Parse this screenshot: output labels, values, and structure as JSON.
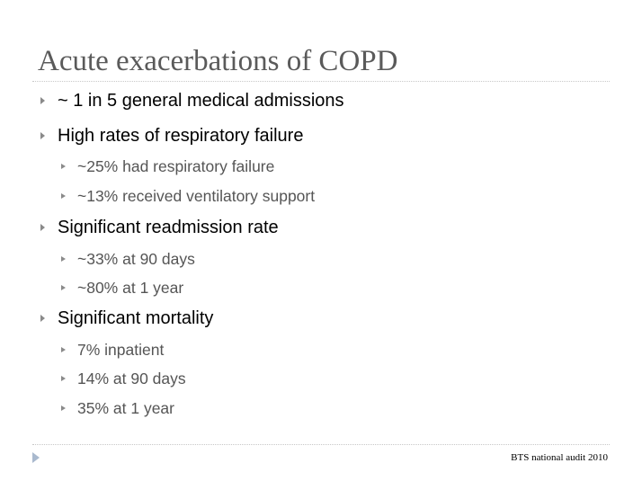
{
  "slide": {
    "title": "Acute exacerbations of COPD",
    "bullets": [
      {
        "text": "~ 1 in 5 general medical admissions",
        "level": 1
      },
      {
        "text": "High rates of respiratory failure",
        "level": 1
      },
      {
        "text": "~25% had respiratory failure",
        "level": 2
      },
      {
        "text": "~13% received ventilatory support",
        "level": 2
      },
      {
        "text": "Significant readmission rate",
        "level": 1
      },
      {
        "text": "~33% at 90 days",
        "level": 2
      },
      {
        "text": "~80% at 1 year",
        "level": 2
      },
      {
        "text": "Significant mortality",
        "level": 1
      },
      {
        "text": "7% inpatient",
        "level": 2
      },
      {
        "text": "14% at 90 days",
        "level": 2
      },
      {
        "text": "35% at 1 year",
        "level": 2
      }
    ],
    "footer": "BTS national audit 2010"
  },
  "colors": {
    "title": "#5a5a5a",
    "level1_text": "#000000",
    "level2_text": "#555555",
    "bullet_marker": "#8a8a8a",
    "footer_arrow": "#a9b9ce",
    "rule": "#c8c8c8"
  },
  "icons": {
    "bullet": "triangle-bullet-icon",
    "footer": "triangle-arrow-icon"
  }
}
